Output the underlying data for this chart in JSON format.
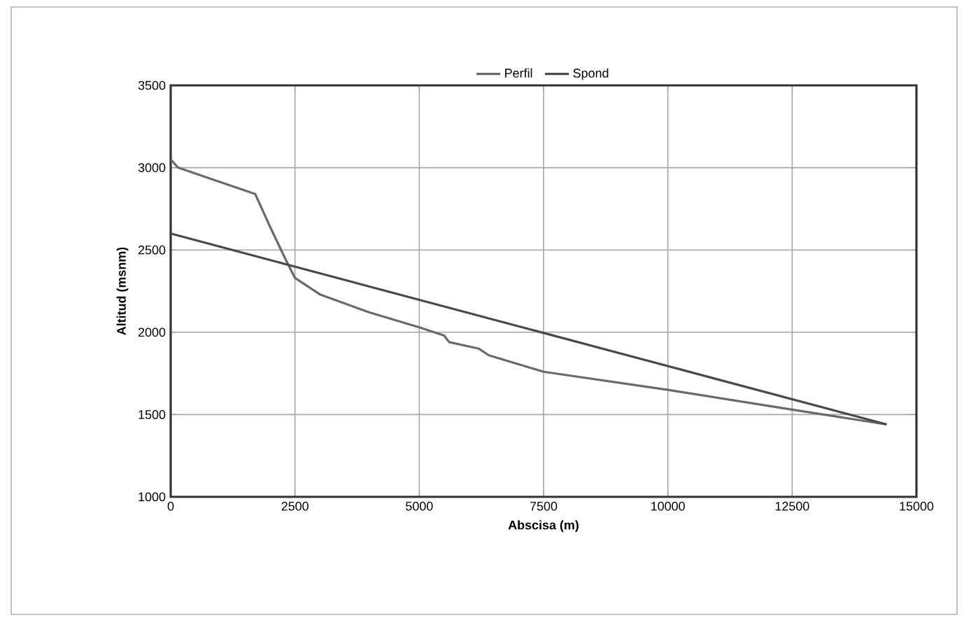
{
  "chart_data": {
    "type": "line",
    "xlabel": "Abscisa (m)",
    "ylabel": "Altitud (msnm)",
    "xlim": [
      0,
      15000
    ],
    "ylim": [
      1000,
      3500
    ],
    "xticks": [
      0,
      2500,
      5000,
      7500,
      10000,
      12500,
      15000
    ],
    "yticks": [
      1000,
      1500,
      2000,
      2500,
      3000,
      3500
    ],
    "grid": true,
    "legend": "top",
    "line_style": "solid",
    "marker": "none",
    "series": [
      {
        "name": "Perfil",
        "color": "#6a6a6a",
        "x": [
          0,
          150,
          1700,
          2000,
          2300,
          2500,
          3000,
          4000,
          5000,
          5500,
          5600,
          6200,
          6400,
          7500,
          10000,
          12500,
          14400
        ],
        "values": [
          3050,
          3000,
          2840,
          2640,
          2450,
          2330,
          2230,
          2120,
          2030,
          1980,
          1940,
          1900,
          1860,
          1760,
          1650,
          1530,
          1440
        ]
      },
      {
        "name": "Spond",
        "color": "#4a4a4a",
        "x": [
          0,
          14400
        ],
        "values": [
          2600,
          1440
        ]
      }
    ]
  }
}
